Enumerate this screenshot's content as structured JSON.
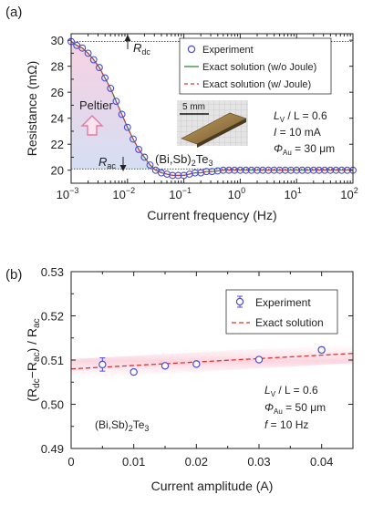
{
  "chart_data": [
    {
      "panel_label": "(a)",
      "type": "scatter",
      "xscale": "log",
      "xlim": [
        0.001,
        100
      ],
      "ylim": [
        19,
        30.5
      ],
      "xlabel": "Current frequency  (Hz)",
      "ylabel": "Resistance (mΩ)",
      "x_ticks": [
        "10",
        "10",
        "10",
        "10",
        "10",
        "10"
      ],
      "x_tick_exponents": [
        "−3",
        "−2",
        "−1",
        "0",
        "1",
        "2"
      ],
      "x_tick_values": [
        0.001,
        0.01,
        0.1,
        1,
        10,
        100
      ],
      "y_ticks": [
        20,
        22,
        24,
        26,
        28,
        30
      ],
      "reference_lines": [
        {
          "label_main": "R",
          "label_sub": "dc",
          "y": 29.9
        },
        {
          "label_main": "R",
          "label_sub": "ac",
          "y": 20.1
        }
      ],
      "region_label": "Peltier",
      "material_main": "(Bi,Sb)",
      "material_sub": "2",
      "material_tail": "Te",
      "material_sub2": "3",
      "scale_bar": "5 mm",
      "params": [
        {
          "main": "L",
          "sub": "V",
          "rest": " / L = 0.6"
        },
        {
          "main": "I",
          "sub": "",
          "rest": " = 10 mA"
        },
        {
          "main": "Φ",
          "sub": "Au",
          "rest": " = 30 μm"
        }
      ],
      "legend_position": "top-right",
      "series": [
        {
          "name": "Experiment",
          "marker": "circle",
          "color": "#4a4adf",
          "x": [
            0.001,
            0.00126,
            0.00158,
            0.002,
            0.00251,
            0.00316,
            0.00398,
            0.00501,
            0.00631,
            0.00794,
            0.01,
            0.0126,
            0.0158,
            0.02,
            0.0251,
            0.0316,
            0.0398,
            0.0501,
            0.0631,
            0.0794,
            0.1,
            0.126,
            0.158,
            0.2,
            0.251,
            0.316,
            0.398,
            0.501,
            0.631,
            0.794,
            1,
            1.26,
            1.58,
            2,
            2.51,
            3.16,
            3.98,
            5.01,
            6.31,
            7.94,
            10,
            12.6,
            15.8,
            20,
            25.1,
            31.6,
            39.8,
            50.1,
            63.1,
            79.4,
            100
          ],
          "y": [
            29.9,
            29.6,
            29.4,
            29.0,
            28.5,
            27.9,
            27.1,
            26.3,
            25.3,
            24.3,
            23.3,
            22.4,
            21.6,
            21.0,
            20.4,
            20.0,
            19.8,
            19.7,
            19.6,
            19.6,
            19.6,
            19.7,
            19.8,
            19.8,
            19.9,
            19.9,
            19.95,
            20.0,
            20.0,
            20.0,
            20.0,
            20.0,
            20.0,
            20.0,
            20.0,
            20.0,
            20.0,
            20.0,
            20.0,
            20.0,
            20.0,
            20.0,
            20.0,
            20.0,
            20.0,
            20.0,
            20.0,
            20.0,
            20.0,
            20.0,
            20.0
          ]
        },
        {
          "name": "Exact solution (w/o Joule)",
          "style": "solid",
          "color": "#2e8b2e"
        },
        {
          "name": "Exact solution (w/ Joule)",
          "style": "dashed",
          "color": "#e03030"
        }
      ]
    },
    {
      "panel_label": "(b)",
      "type": "scatter",
      "xlim": [
        0,
        0.045
      ],
      "ylim": [
        0.49,
        0.53
      ],
      "xlabel": "Current amplitude  (A)",
      "ylabel_parts": [
        "(R",
        "dc",
        "−R",
        "ac",
        ") / R",
        "ac"
      ],
      "x_ticks": [
        "0",
        "0.01",
        "0.02",
        "0.03",
        "0.04"
      ],
      "x_tick_values": [
        0,
        0.01,
        0.02,
        0.03,
        0.04
      ],
      "y_ticks": [
        "0.49",
        "0.50",
        "0.51",
        "0.52",
        "0.53"
      ],
      "y_tick_values": [
        0.49,
        0.5,
        0.51,
        0.52,
        0.53
      ],
      "material_main": "(Bi,Sb)",
      "material_sub": "2",
      "material_tail": "Te",
      "material_sub2": "3",
      "params": [
        {
          "main": "L",
          "sub": "V",
          "rest": " / L = 0.6"
        },
        {
          "main": "Φ",
          "sub": "Au",
          "rest": " = 50 μm"
        },
        {
          "main": "f",
          "sub": "",
          "rest": " = 10 Hz"
        }
      ],
      "legend_position": "top-right",
      "series": [
        {
          "name": "Experiment",
          "marker": "circle",
          "color": "#4a4adf",
          "x": [
            0.005,
            0.01,
            0.015,
            0.02,
            0.03,
            0.04
          ],
          "y": [
            0.509,
            0.5073,
            0.5087,
            0.5091,
            0.5101,
            0.5123
          ],
          "err": [
            0.0015,
            0.0005,
            0.0004,
            0.0004,
            0.0004,
            0.0006
          ]
        },
        {
          "name": "Exact solution",
          "style": "dashed",
          "color": "#e03030",
          "x": [
            0,
            0.045
          ],
          "y": [
            0.508,
            0.5115
          ]
        }
      ]
    }
  ]
}
